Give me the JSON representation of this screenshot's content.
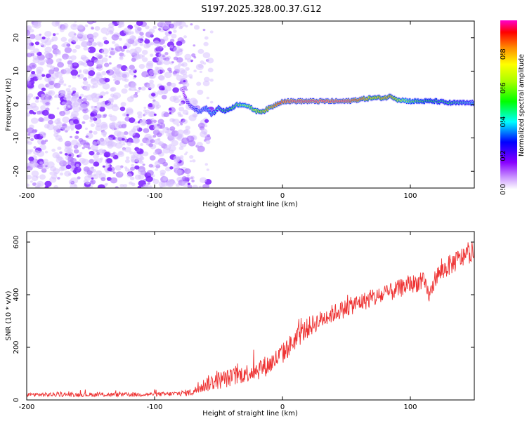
{
  "title": "S197.2025.328.00.37.G12",
  "chart_data": [
    {
      "type": "heatmap",
      "xlabel": "Height of straight line (km)",
      "ylabel": "Frequency (Hz)",
      "xlim": [
        -200,
        150
      ],
      "ylim": [
        -25,
        25
      ],
      "xticks": [
        -200,
        -100,
        0,
        100
      ],
      "yticks": [
        -20,
        -10,
        0,
        10,
        20
      ],
      "colorbar": {
        "label": "Normalized spectral amplitude",
        "range": [
          0,
          1
        ],
        "ticks": [
          0.0,
          0.2,
          0.4,
          0.6,
          0.8
        ]
      },
      "noise_region": {
        "x_from": -200,
        "x_to": -55,
        "freq_range": [
          -25,
          25
        ],
        "amplitude": 0.15
      },
      "ridge": {
        "x": [
          -80,
          -75,
          -70,
          -65,
          -60,
          -55,
          -50,
          -45,
          -40,
          -35,
          -30,
          -25,
          -20,
          -15,
          -10,
          -5,
          0,
          10,
          20,
          30,
          40,
          50,
          60,
          70,
          80,
          85,
          90,
          100,
          110,
          120,
          130,
          140,
          150
        ],
        "freq": [
          7,
          1,
          -1,
          -2,
          -1,
          -3,
          -1,
          -2,
          -1,
          0,
          0,
          -1,
          -2,
          -2,
          -1,
          0,
          1,
          1,
          1,
          1,
          1,
          1,
          1.5,
          2,
          2,
          2.5,
          1.5,
          1,
          1,
          1,
          0.5,
          0.5,
          0.5
        ],
        "amplitude": [
          0.05,
          0.2,
          0.25,
          0.3,
          0.35,
          0.4,
          0.45,
          0.5,
          0.55,
          0.6,
          0.65,
          0.7,
          0.75,
          0.8,
          0.85,
          0.9,
          0.95,
          0.98,
          0.98,
          0.98,
          0.98,
          0.98,
          0.9,
          0.8,
          0.85,
          0.85,
          0.75,
          0.6,
          0.55,
          0.5,
          0.5,
          0.45,
          0.4
        ]
      }
    },
    {
      "type": "line",
      "xlabel": "Height of straight line (km)",
      "ylabel": "SNR (10 * v/v)",
      "xlim": [
        -200,
        150
      ],
      "ylim": [
        0,
        640
      ],
      "xticks": [
        -200,
        -100,
        0,
        100
      ],
      "yticks": [
        0,
        200,
        400,
        600
      ],
      "series": [
        {
          "name": "SNR",
          "color": "#ee3333",
          "x": [
            -200,
            -180,
            -160,
            -140,
            -120,
            -100,
            -90,
            -80,
            -70,
            -65,
            -60,
            -50,
            -40,
            -30,
            -20,
            -10,
            0,
            10,
            20,
            30,
            40,
            50,
            60,
            70,
            80,
            90,
            100,
            110,
            115,
            120,
            130,
            140,
            150
          ],
          "y": [
            20,
            20,
            20,
            20,
            20,
            22,
            22,
            25,
            30,
            45,
            60,
            75,
            85,
            100,
            115,
            135,
            175,
            230,
            275,
            305,
            330,
            350,
            370,
            385,
            400,
            420,
            440,
            450,
            395,
            470,
            510,
            540,
            565
          ],
          "noise_amplitude": [
            8,
            8,
            8,
            8,
            8,
            8,
            8,
            10,
            14,
            20,
            30,
            35,
            35,
            35,
            40,
            40,
            40,
            40,
            40,
            35,
            35,
            35,
            35,
            35,
            35,
            35,
            35,
            35,
            30,
            35,
            40,
            40,
            35
          ]
        }
      ]
    }
  ]
}
